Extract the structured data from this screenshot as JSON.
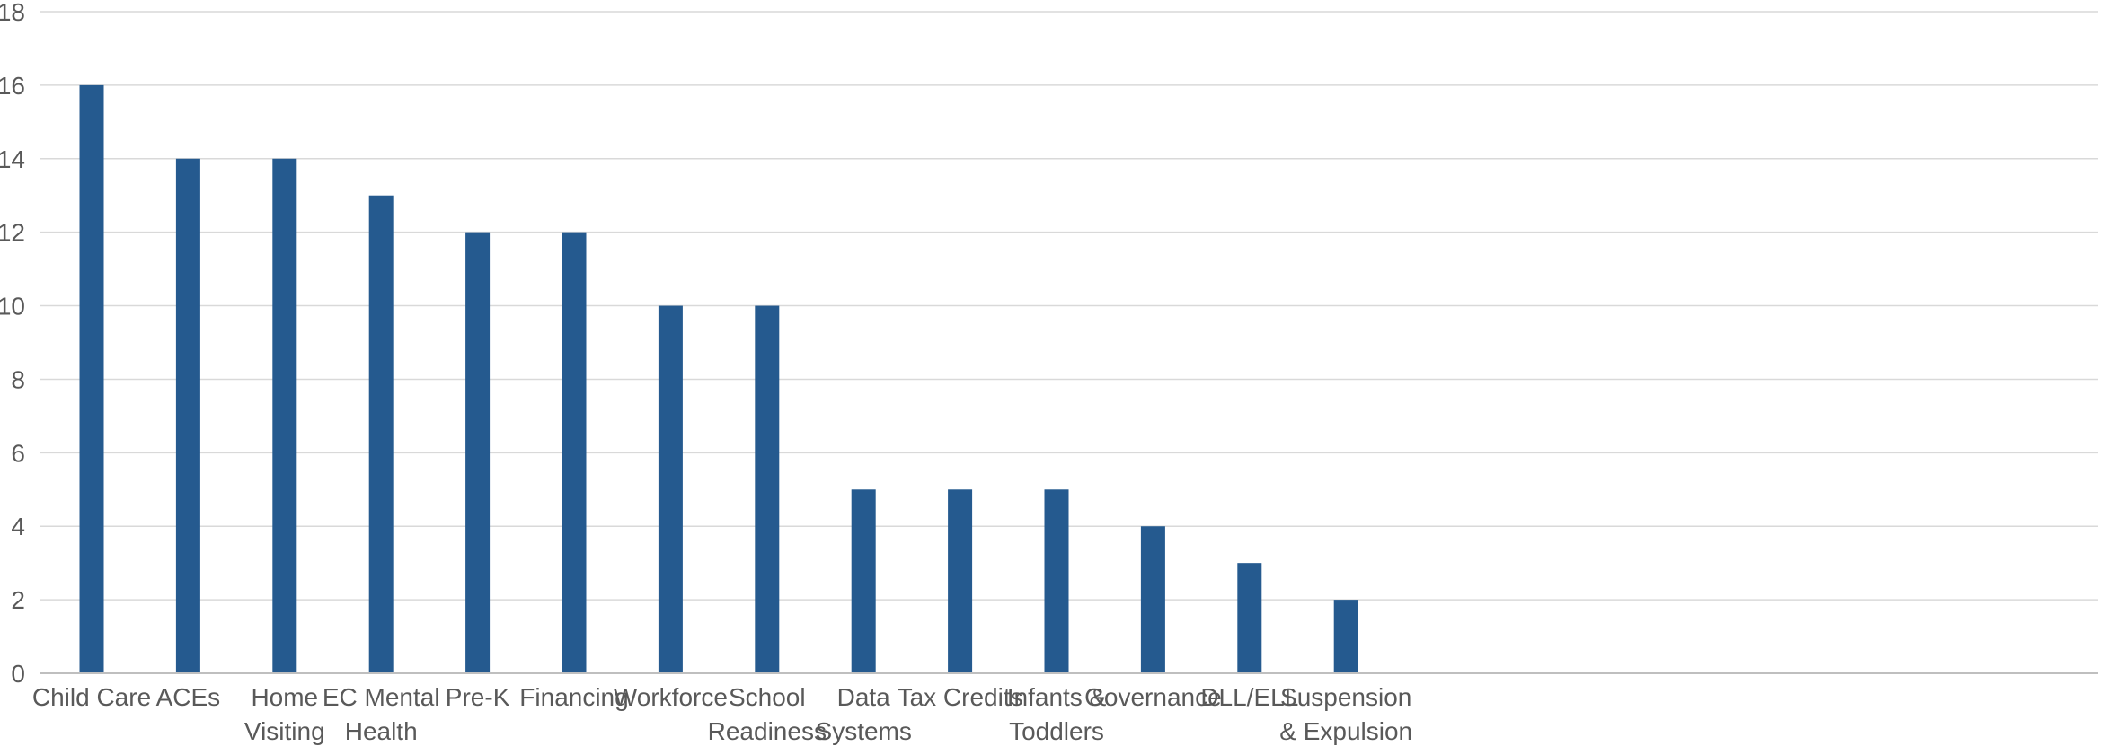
{
  "chart_data": {
    "type": "bar",
    "title": "",
    "xlabel": "",
    "ylabel": "",
    "ylim": [
      0,
      18
    ],
    "yticks": [
      0,
      2,
      4,
      6,
      8,
      10,
      12,
      14,
      16,
      18
    ],
    "grid": true,
    "legend": "none",
    "bar_color": "#255A8F",
    "categories": [
      [
        "Child Care"
      ],
      [
        "ACEs"
      ],
      [
        "Home",
        "Visiting"
      ],
      [
        "EC Mental",
        "Health"
      ],
      [
        "Pre-K"
      ],
      [
        "Financing"
      ],
      [
        "Workforce"
      ],
      [
        "School",
        "Readiness"
      ],
      [
        "Data",
        "Systems"
      ],
      [
        "Tax Credits"
      ],
      [
        "Infants &",
        "Toddlers"
      ],
      [
        "Governance"
      ],
      [
        "DLL/ELL"
      ],
      [
        "Suspension",
        "& Expulsion"
      ]
    ],
    "values": [
      16,
      14,
      14,
      13,
      12,
      12,
      10,
      10,
      5,
      5,
      5,
      4,
      3,
      2
    ]
  }
}
